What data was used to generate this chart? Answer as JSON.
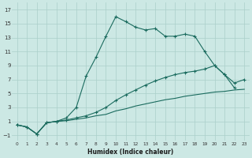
{
  "xlabel": "Humidex (Indice chaleur)",
  "xlim": [
    -0.5,
    23.5
  ],
  "ylim": [
    -1.8,
    18.0
  ],
  "xticks": [
    0,
    1,
    2,
    3,
    4,
    5,
    6,
    7,
    8,
    9,
    10,
    11,
    12,
    13,
    14,
    15,
    16,
    17,
    18,
    19,
    20,
    21,
    22,
    23
  ],
  "yticks": [
    -1,
    1,
    3,
    5,
    7,
    9,
    11,
    13,
    15,
    17
  ],
  "bg_color": "#cce8e4",
  "grid_color": "#aacfca",
  "line_color": "#1a6b5e",
  "line1_x": [
    0,
    1,
    2,
    3,
    4,
    5,
    6,
    7,
    8,
    9,
    10,
    11,
    12,
    13,
    14,
    15,
    16,
    17,
    18,
    19,
    20,
    21,
    22
  ],
  "line1_y": [
    0.5,
    0.2,
    -0.8,
    0.8,
    1.0,
    1.5,
    3.0,
    7.5,
    10.2,
    13.2,
    16.0,
    15.3,
    14.5,
    14.1,
    14.3,
    13.2,
    13.2,
    13.5,
    13.2,
    11.0,
    9.0,
    7.7,
    5.8
  ],
  "line2_x": [
    0,
    1,
    2,
    3,
    4,
    5,
    6,
    7,
    8,
    9,
    10,
    11,
    12,
    13,
    14,
    15,
    16,
    17,
    18,
    19,
    20,
    21,
    22,
    23
  ],
  "line2_y": [
    0.5,
    0.2,
    -0.8,
    0.8,
    1.0,
    1.2,
    1.5,
    1.8,
    2.3,
    3.0,
    4.0,
    4.8,
    5.5,
    6.2,
    6.8,
    7.3,
    7.7,
    8.0,
    8.2,
    8.5,
    9.0,
    7.7,
    6.5,
    7.0
  ],
  "line3_x": [
    0,
    1,
    2,
    3,
    4,
    5,
    6,
    7,
    8,
    9,
    10,
    11,
    12,
    13,
    14,
    15,
    16,
    17,
    18,
    19,
    20,
    21,
    22,
    23
  ],
  "line3_y": [
    0.5,
    0.2,
    -0.8,
    0.8,
    1.0,
    1.1,
    1.3,
    1.5,
    1.8,
    2.0,
    2.5,
    2.8,
    3.2,
    3.5,
    3.8,
    4.1,
    4.3,
    4.6,
    4.8,
    5.0,
    5.2,
    5.3,
    5.5,
    5.6
  ]
}
